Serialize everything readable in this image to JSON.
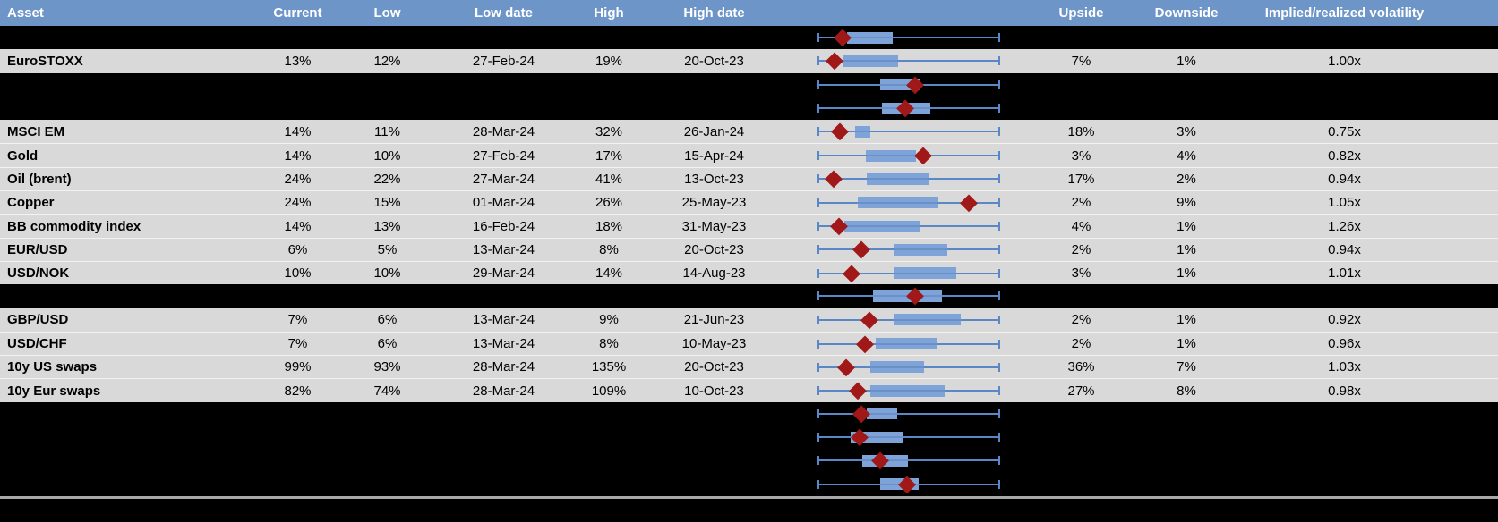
{
  "table": {
    "columns": [
      {
        "key": "asset",
        "label": "Asset"
      },
      {
        "key": "current",
        "label": "Current"
      },
      {
        "key": "low",
        "label": "Low"
      },
      {
        "key": "low_date",
        "label": "Low date"
      },
      {
        "key": "high",
        "label": "High"
      },
      {
        "key": "high_date",
        "label": "High date"
      },
      {
        "key": "chart",
        "label": ""
      },
      {
        "key": "upside",
        "label": "Upside"
      },
      {
        "key": "downside",
        "label": "Downside"
      },
      {
        "key": "implied",
        "label": "Implied/realized volatility"
      }
    ],
    "rows": [
      {
        "type": "hidden",
        "asset": "",
        "current": "",
        "low": "",
        "low_date": "",
        "high": "",
        "high_date": "",
        "upside": "",
        "downside": "",
        "implied": ""
      },
      {
        "type": "data",
        "asset": "EuroSTOXX",
        "current": "13%",
        "low": "12%",
        "low_date": "27-Feb-24",
        "high": "19%",
        "high_date": "20-Oct-23",
        "upside": "7%",
        "downside": "1%",
        "implied": "1.00x"
      },
      {
        "type": "hidden",
        "asset": "",
        "current": "",
        "low": "",
        "low_date": "",
        "high": "",
        "high_date": "",
        "upside": "",
        "downside": "",
        "implied": ""
      },
      {
        "type": "hidden",
        "asset": "",
        "current": "",
        "low": "",
        "low_date": "",
        "high": "",
        "high_date": "",
        "upside": "",
        "downside": "",
        "implied": ""
      },
      {
        "type": "data",
        "asset": "MSCI EM",
        "current": "14%",
        "low": "11%",
        "low_date": "28-Mar-24",
        "high": "32%",
        "high_date": "26-Jan-24",
        "upside": "18%",
        "downside": "3%",
        "implied": "0.75x"
      },
      {
        "type": "data",
        "asset": "Gold",
        "current": "14%",
        "low": "10%",
        "low_date": "27-Feb-24",
        "high": "17%",
        "high_date": "15-Apr-24",
        "upside": "3%",
        "downside": "4%",
        "implied": "0.82x"
      },
      {
        "type": "data",
        "asset": "Oil (brent)",
        "current": "24%",
        "low": "22%",
        "low_date": "27-Mar-24",
        "high": "41%",
        "high_date": "13-Oct-23",
        "upside": "17%",
        "downside": "2%",
        "implied": "0.94x"
      },
      {
        "type": "data",
        "asset": "Copper",
        "current": "24%",
        "low": "15%",
        "low_date": "01-Mar-24",
        "high": "26%",
        "high_date": "25-May-23",
        "upside": "2%",
        "downside": "9%",
        "implied": "1.05x"
      },
      {
        "type": "data",
        "asset": "BB commodity index",
        "current": "14%",
        "low": "13%",
        "low_date": "16-Feb-24",
        "high": "18%",
        "high_date": "31-May-23",
        "upside": "4%",
        "downside": "1%",
        "implied": "1.26x"
      },
      {
        "type": "data",
        "asset": "EUR/USD",
        "current": "6%",
        "low": "5%",
        "low_date": "13-Mar-24",
        "high": "8%",
        "high_date": "20-Oct-23",
        "upside": "2%",
        "downside": "1%",
        "implied": "0.94x"
      },
      {
        "type": "data",
        "asset": "USD/NOK",
        "current": "10%",
        "low": "10%",
        "low_date": "29-Mar-24",
        "high": "14%",
        "high_date": "14-Aug-23",
        "upside": "3%",
        "downside": "1%",
        "implied": "1.01x"
      },
      {
        "type": "hidden",
        "asset": "",
        "current": "",
        "low": "",
        "low_date": "",
        "high": "",
        "high_date": "",
        "upside": "",
        "downside": "",
        "implied": ""
      },
      {
        "type": "data",
        "asset": "GBP/USD",
        "current": "7%",
        "low": "6%",
        "low_date": "13-Mar-24",
        "high": "9%",
        "high_date": "21-Jun-23",
        "upside": "2%",
        "downside": "1%",
        "implied": "0.92x"
      },
      {
        "type": "data",
        "asset": "USD/CHF",
        "current": "7%",
        "low": "6%",
        "low_date": "13-Mar-24",
        "high": "8%",
        "high_date": "10-May-23",
        "upside": "2%",
        "downside": "1%",
        "implied": "0.96x"
      },
      {
        "type": "data",
        "asset": "10y US swaps",
        "current": "99%",
        "low": "93%",
        "low_date": "28-Mar-24",
        "high": "135%",
        "high_date": "20-Oct-23",
        "upside": "36%",
        "downside": "7%",
        "implied": "1.03x"
      },
      {
        "type": "data",
        "asset": "10y Eur swaps",
        "current": "82%",
        "low": "74%",
        "low_date": "28-Mar-24",
        "high": "109%",
        "high_date": "10-Oct-23",
        "upside": "27%",
        "downside": "8%",
        "implied": "0.98x"
      },
      {
        "type": "hidden",
        "asset": "",
        "current": "",
        "low": "",
        "low_date": "",
        "high": "",
        "high_date": "",
        "upside": "",
        "downside": "",
        "implied": ""
      },
      {
        "type": "hidden",
        "asset": "",
        "current": "",
        "low": "",
        "low_date": "",
        "high": "",
        "high_date": "",
        "upside": "",
        "downside": "",
        "implied": ""
      },
      {
        "type": "hidden",
        "asset": "",
        "current": "",
        "low": "",
        "low_date": "",
        "high": "",
        "high_date": "",
        "upside": "",
        "downside": "",
        "implied": ""
      },
      {
        "type": "hidden",
        "asset": "",
        "current": "",
        "low": "",
        "low_date": "",
        "high": "",
        "high_date": "",
        "upside": "",
        "downside": "",
        "implied": ""
      }
    ]
  },
  "chart_data": {
    "type": "boxplot",
    "orientation": "horizontal",
    "note": "One normalized horizontal box-and-whisker per table row; whisker spans the full low-high range (0 to 1), blue box marks the middle band, red diamond marks the current level",
    "whisker_range": [
      0,
      1
    ],
    "rows": [
      {
        "label": "",
        "box": [
          0.162,
          0.412
        ],
        "marker": 0.137
      },
      {
        "label": "EuroSTOXX",
        "box": [
          0.137,
          0.441
        ],
        "marker": 0.093
      },
      {
        "label": "",
        "box": [
          0.343,
          0.564
        ],
        "marker": 0.534
      },
      {
        "label": "",
        "box": [
          0.353,
          0.618
        ],
        "marker": 0.48
      },
      {
        "label": "MSCI EM",
        "box": [
          0.206,
          0.289
        ],
        "marker": 0.123
      },
      {
        "label": "Gold",
        "box": [
          0.265,
          0.539
        ],
        "marker": 0.578
      },
      {
        "label": "Oil (brent)",
        "box": [
          0.27,
          0.608
        ],
        "marker": 0.088
      },
      {
        "label": "Copper",
        "box": [
          0.221,
          0.662
        ],
        "marker": 0.828
      },
      {
        "label": "BB commodity index",
        "box": [
          0.147,
          0.564
        ],
        "marker": 0.118
      },
      {
        "label": "EUR/USD",
        "box": [
          0.417,
          0.711
        ],
        "marker": 0.24
      },
      {
        "label": "USD/NOK",
        "box": [
          0.417,
          0.76
        ],
        "marker": 0.186
      },
      {
        "label": "",
        "box": [
          0.304,
          0.681
        ],
        "marker": 0.534
      },
      {
        "label": "GBP/USD",
        "box": [
          0.417,
          0.784
        ],
        "marker": 0.284
      },
      {
        "label": "USD/CHF",
        "box": [
          0.319,
          0.652
        ],
        "marker": 0.26
      },
      {
        "label": "10y US swaps",
        "box": [
          0.289,
          0.583
        ],
        "marker": 0.157
      },
      {
        "label": "10y Eur swaps",
        "box": [
          0.289,
          0.696
        ],
        "marker": 0.221
      },
      {
        "label": "",
        "box": [
          0.27,
          0.436
        ],
        "marker": 0.24
      },
      {
        "label": "",
        "box": [
          0.181,
          0.466
        ],
        "marker": 0.23
      },
      {
        "label": "",
        "box": [
          0.245,
          0.495
        ],
        "marker": 0.343
      },
      {
        "label": "",
        "box": [
          0.343,
          0.554
        ],
        "marker": 0.49
      }
    ]
  },
  "colors": {
    "header_bg": "#6e95c8",
    "header_text": "#ffffff",
    "row_bg": "#d9d9d9",
    "hidden_row_bg": "#000000",
    "body_text": "#000000",
    "whisker_blue": "#5a87c5",
    "box_blue": "#7da3d8",
    "marker_red": "#a11818",
    "divider_gray": "#a8a8a8"
  }
}
